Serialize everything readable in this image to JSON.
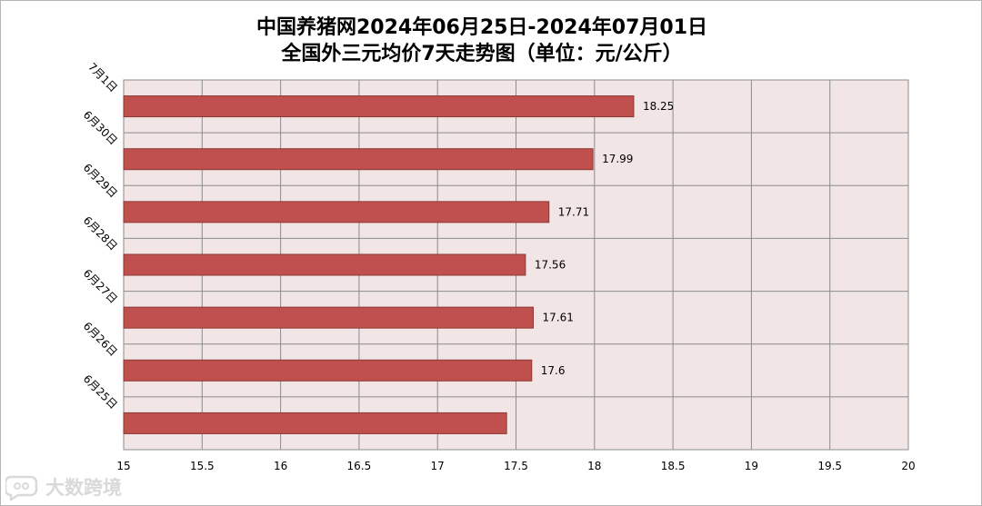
{
  "chart_data": {
    "type": "bar",
    "orientation": "horizontal",
    "title_line1": "中国养猪网2024年06月25日-2024年07月01日",
    "title_line2": "全国外三元均价7天走势图（单位：元/公斤）",
    "categories": [
      "7月1日",
      "6月30日",
      "6月29日",
      "6月28日",
      "6月27日",
      "6月26日",
      "6月25日"
    ],
    "values": [
      18.25,
      17.99,
      17.71,
      17.56,
      17.61,
      17.6,
      17.44
    ],
    "data_labels": [
      "18.25",
      "17.99",
      "17.71",
      "17.56",
      "17.61",
      "17.6",
      null
    ],
    "xlim": [
      15,
      20
    ],
    "x_ticks": [
      "15",
      "15.5",
      "16",
      "16.5",
      "17",
      "17.5",
      "18",
      "18.5",
      "19",
      "19.5",
      "20"
    ],
    "grid": true,
    "colors": {
      "bar": "#c0504d",
      "bar_border": "#8c3836",
      "plot_bg": "#f2e5e5",
      "grid": "#8c8c8c"
    }
  },
  "watermark": {
    "text": "大数跨境",
    "icon": "speech-bubble-logo"
  }
}
